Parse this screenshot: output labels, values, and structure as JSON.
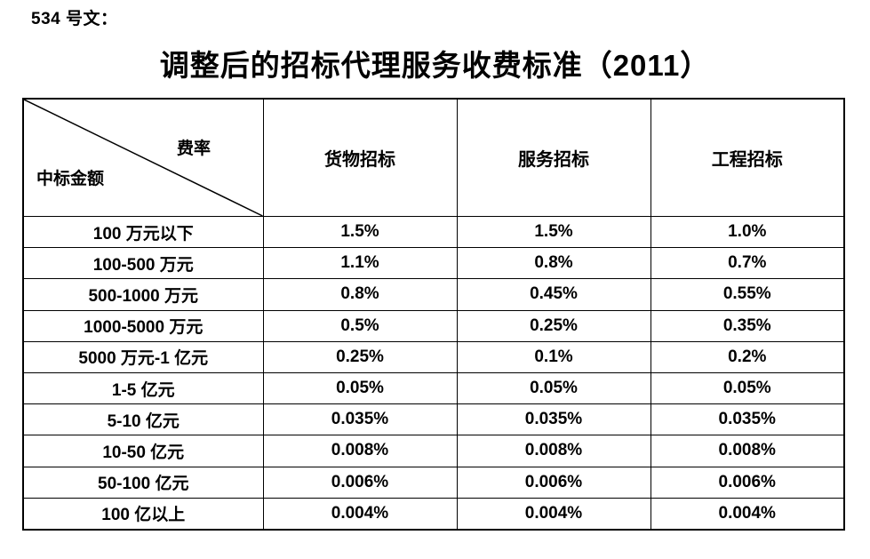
{
  "doc": {
    "label": "534 号文："
  },
  "title": "调整后的招标代理服务收费标准（2011）",
  "table": {
    "corner": {
      "rate_label": "费率",
      "amount_label": "中标金额"
    },
    "columns": [
      "货物招标",
      "服务招标",
      "工程招标"
    ],
    "rows": [
      {
        "label": "100 万元以下",
        "values": [
          "1.5%",
          "1.5%",
          "1.0%"
        ]
      },
      {
        "label": "100-500 万元",
        "values": [
          "1.1%",
          "0.8%",
          "0.7%"
        ]
      },
      {
        "label": "500-1000 万元",
        "values": [
          "0.8%",
          "0.45%",
          "0.55%"
        ]
      },
      {
        "label": "1000-5000 万元",
        "values": [
          "0.5%",
          "0.25%",
          "0.35%"
        ]
      },
      {
        "label": "5000 万元-1 亿元",
        "values": [
          "0.25%",
          "0.1%",
          "0.2%"
        ]
      },
      {
        "label": "1-5 亿元",
        "values": [
          "0.05%",
          "0.05%",
          "0.05%"
        ]
      },
      {
        "label": "5-10 亿元",
        "values": [
          "0.035%",
          "0.035%",
          "0.035%"
        ]
      },
      {
        "label": "10-50 亿元",
        "values": [
          "0.008%",
          "0.008%",
          "0.008%"
        ]
      },
      {
        "label": "50-100 亿元",
        "values": [
          "0.006%",
          "0.006%",
          "0.006%"
        ]
      },
      {
        "label": "100 亿以上",
        "values": [
          "0.004%",
          "0.004%",
          "0.004%"
        ]
      }
    ]
  },
  "colors": {
    "text": "#000000",
    "border": "#000000",
    "background": "#ffffff"
  }
}
